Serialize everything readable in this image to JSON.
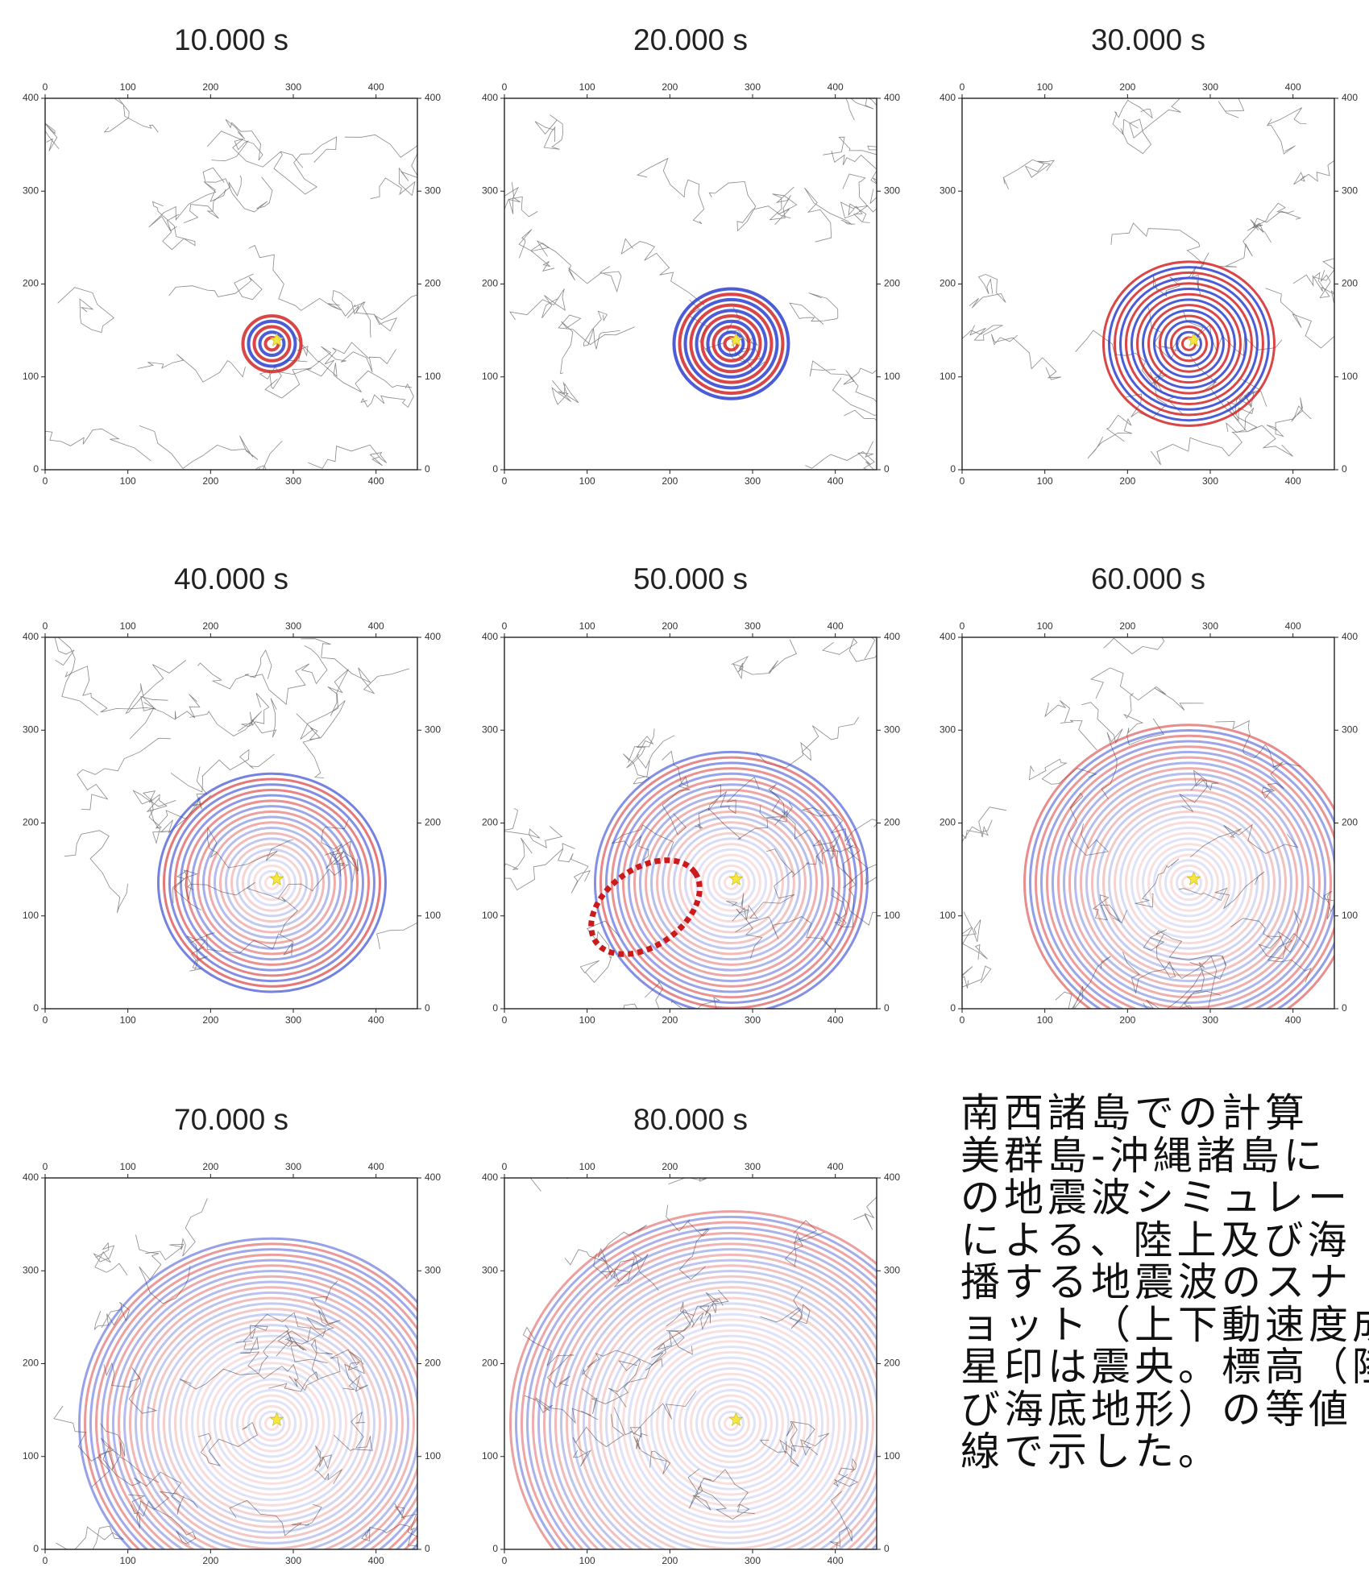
{
  "figure": {
    "xlim": [
      0,
      450
    ],
    "ylim": [
      0,
      400
    ],
    "xticks": [
      0,
      100,
      200,
      300,
      400
    ],
    "yticks": [
      0,
      100,
      200,
      300,
      400
    ],
    "epicenter": [
      280,
      140
    ],
    "panels": [
      {
        "title": "10.000 s"
      },
      {
        "title": "20.000 s"
      },
      {
        "title": "30.000 s"
      },
      {
        "title": "40.000 s"
      },
      {
        "title": "50.000 s"
      },
      {
        "title": "60.000 s"
      },
      {
        "title": "70.000 s"
      },
      {
        "title": "80.000 s"
      }
    ]
  },
  "caption": {
    "lines": [
      "南西諸島での計算",
      "美群島-沖縄諸島に",
      "の地震波シミュレー",
      "による、陸上及び海",
      "播する地震波のスナ",
      "ョット（上下動速度成",
      "星印は震央。標高（陸",
      "び海底地形）の等値",
      "線で示した。"
    ]
  }
}
